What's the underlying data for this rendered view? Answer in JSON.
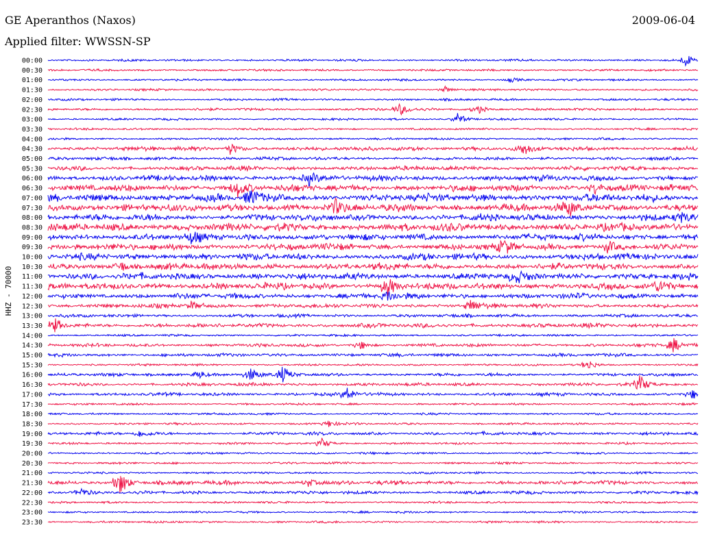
{
  "header": {
    "station": "GE Aperanthos (Naxos)",
    "date": "2009-06-04",
    "filter": "Applied filter: WWSSN-SP"
  },
  "chart_data": {
    "type": "line",
    "ylabel": "HHZ - 70000",
    "row_labels": [
      "00:00",
      "00:30",
      "01:00",
      "01:30",
      "02:00",
      "02:30",
      "03:00",
      "03:30",
      "04:00",
      "04:30",
      "05:00",
      "05:30",
      "06:00",
      "06:30",
      "07:00",
      "07:30",
      "08:00",
      "08:30",
      "09:00",
      "09:30",
      "10:00",
      "10:30",
      "11:00",
      "11:30",
      "12:00",
      "12:30",
      "13:00",
      "13:30",
      "14:00",
      "14:30",
      "15:00",
      "15:30",
      "16:00",
      "16:30",
      "17:00",
      "17:30",
      "18:00",
      "18:30",
      "19:00",
      "19:30",
      "20:00",
      "20:30",
      "21:00",
      "21:30",
      "22:00",
      "22:30",
      "23:00",
      "23:30"
    ],
    "colors": [
      "#0000ee",
      "#ee1144"
    ],
    "noise_levels": [
      1,
      1,
      1,
      1,
      1,
      1.5,
      1,
      1,
      1,
      3,
      2,
      3,
      4,
      5,
      6,
      6,
      5,
      6,
      5,
      5,
      5,
      5,
      5,
      5,
      4,
      3,
      2,
      3,
      1,
      2,
      2,
      1,
      2,
      2,
      2,
      1,
      1,
      1,
      2,
      1,
      1,
      1,
      1,
      3,
      2,
      1,
      1,
      1
    ],
    "events": [
      {
        "row": 0,
        "pos": 0.98,
        "amp": 10
      },
      {
        "row": 2,
        "pos": 0.71,
        "amp": 4
      },
      {
        "row": 3,
        "pos": 0.61,
        "amp": 5
      },
      {
        "row": 5,
        "pos": 0.54,
        "amp": 10
      },
      {
        "row": 5,
        "pos": 0.66,
        "amp": 7
      },
      {
        "row": 6,
        "pos": 0.63,
        "amp": 9
      },
      {
        "row": 9,
        "pos": 0.28,
        "amp": 8
      },
      {
        "row": 9,
        "pos": 0.73,
        "amp": 9
      },
      {
        "row": 12,
        "pos": 0.4,
        "amp": 10
      },
      {
        "row": 13,
        "pos": 0.29,
        "amp": 14
      },
      {
        "row": 13,
        "pos": 0.84,
        "amp": 10
      },
      {
        "row": 14,
        "pos": 0.31,
        "amp": 12
      },
      {
        "row": 15,
        "pos": 0.44,
        "amp": 12
      },
      {
        "row": 15,
        "pos": 0.8,
        "amp": 10
      },
      {
        "row": 16,
        "pos": 0.97,
        "amp": 10
      },
      {
        "row": 18,
        "pos": 0.22,
        "amp": 8
      },
      {
        "row": 19,
        "pos": 0.7,
        "amp": 10
      },
      {
        "row": 19,
        "pos": 0.86,
        "amp": 10
      },
      {
        "row": 21,
        "pos": 0.11,
        "amp": 8
      },
      {
        "row": 22,
        "pos": 0.72,
        "amp": 7
      },
      {
        "row": 23,
        "pos": 0.52,
        "amp": 16
      },
      {
        "row": 23,
        "pos": 0.94,
        "amp": 10
      },
      {
        "row": 24,
        "pos": 0.52,
        "amp": 8
      },
      {
        "row": 25,
        "pos": 0.65,
        "amp": 10
      },
      {
        "row": 25,
        "pos": 0.22,
        "amp": 6
      },
      {
        "row": 27,
        "pos": 0.01,
        "amp": 10
      },
      {
        "row": 29,
        "pos": 0.48,
        "amp": 7
      },
      {
        "row": 29,
        "pos": 0.96,
        "amp": 14
      },
      {
        "row": 31,
        "pos": 0.83,
        "amp": 8
      },
      {
        "row": 32,
        "pos": 0.23,
        "amp": 8
      },
      {
        "row": 32,
        "pos": 0.31,
        "amp": 12
      },
      {
        "row": 32,
        "pos": 0.36,
        "amp": 12
      },
      {
        "row": 33,
        "pos": 0.91,
        "amp": 14
      },
      {
        "row": 34,
        "pos": 0.46,
        "amp": 11
      },
      {
        "row": 34,
        "pos": 0.99,
        "amp": 8
      },
      {
        "row": 37,
        "pos": 0.43,
        "amp": 6
      },
      {
        "row": 38,
        "pos": 0.14,
        "amp": 5
      },
      {
        "row": 39,
        "pos": 0.42,
        "amp": 9
      },
      {
        "row": 43,
        "pos": 0.11,
        "amp": 20
      },
      {
        "row": 43,
        "pos": 0.4,
        "amp": 6
      },
      {
        "row": 44,
        "pos": 0.05,
        "amp": 6
      }
    ]
  }
}
